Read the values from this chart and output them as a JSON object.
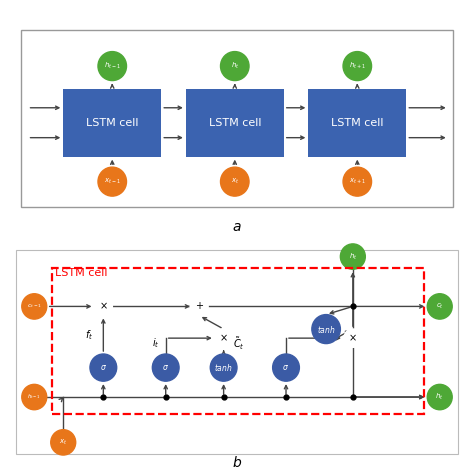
{
  "fig_width": 4.74,
  "fig_height": 4.72,
  "dpi": 100,
  "bg_color": "#ffffff",
  "orange_color": "#E8761A",
  "green_color": "#4EA836",
  "blue_color": "#3B5BA5",
  "blue_rect_color": "#3B63B0",
  "arrow_color": "#444444",
  "label_a": "a",
  "label_b": "b",
  "lstm_label": "LSTM cell",
  "lstm_cell_red_label": "LSTM cell"
}
